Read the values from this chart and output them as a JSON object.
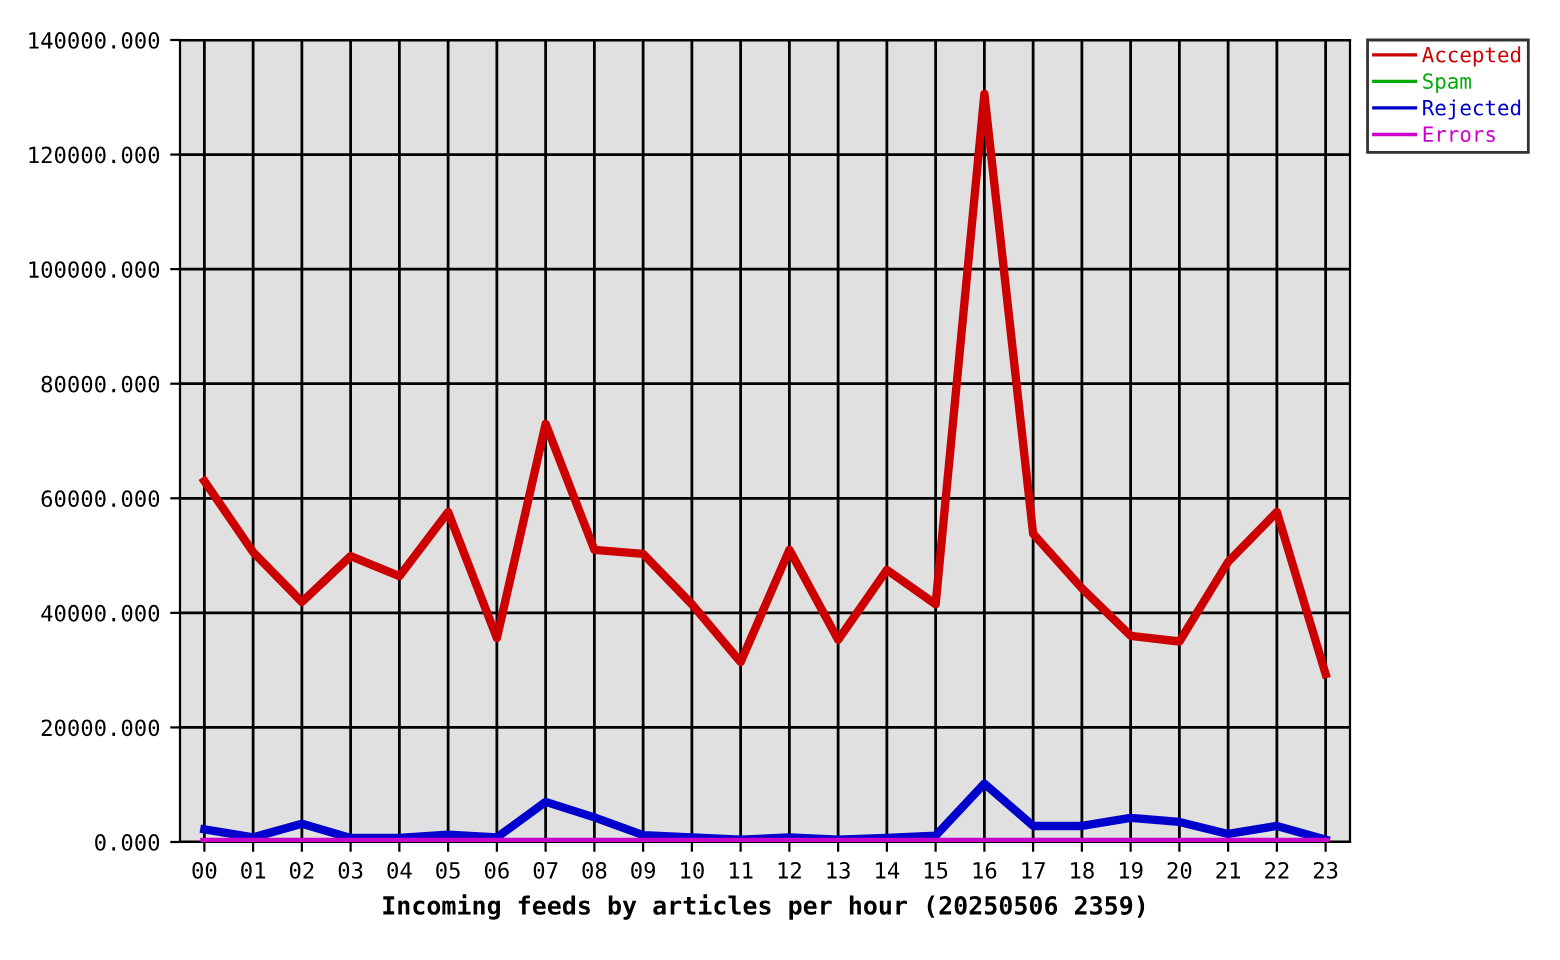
{
  "chart_data": {
    "type": "line",
    "xlabel": "Incoming feeds by articles per hour (20250506 2359)",
    "categories": [
      "00",
      "01",
      "02",
      "03",
      "04",
      "05",
      "06",
      "07",
      "08",
      "09",
      "10",
      "11",
      "12",
      "13",
      "14",
      "15",
      "16",
      "17",
      "18",
      "19",
      "20",
      "21",
      "22",
      "23"
    ],
    "series": [
      {
        "name": "Accepted",
        "color": "#cc0000",
        "values": [
          63000,
          50600,
          41900,
          49900,
          46400,
          57600,
          35600,
          73000,
          51000,
          50300,
          41500,
          31400,
          51000,
          35300,
          47500,
          41500,
          130600,
          53800,
          44300,
          36000,
          35000,
          48900,
          57600,
          29300
        ]
      },
      {
        "name": "Spam",
        "color": "#00aa00",
        "values": [
          null,
          null,
          null,
          null,
          null,
          null,
          null,
          null,
          null,
          null,
          null,
          null,
          null,
          null,
          null,
          null,
          null,
          null,
          null,
          null,
          null,
          null,
          null,
          null
        ]
      },
      {
        "name": "Rejected",
        "color": "#0000cc",
        "values": [
          2200,
          800,
          3200,
          700,
          700,
          1300,
          800,
          7000,
          4300,
          1200,
          800,
          400,
          800,
          400,
          700,
          1100,
          10200,
          2800,
          2800,
          4200,
          3500,
          1400,
          2800,
          400
        ]
      },
      {
        "name": "Errors",
        "color": "#cc00cc",
        "values": [
          0,
          0,
          0,
          0,
          0,
          0,
          0,
          0,
          0,
          0,
          0,
          0,
          0,
          0,
          0,
          0,
          0,
          0,
          0,
          0,
          0,
          0,
          0,
          0
        ]
      }
    ],
    "ylim": [
      0,
      140000
    ],
    "yticks": [
      {
        "value": 0,
        "label": "0.000"
      },
      {
        "value": 20000,
        "label": "20000.000"
      },
      {
        "value": 40000,
        "label": "40000.000"
      },
      {
        "value": 60000,
        "label": "60000.000"
      },
      {
        "value": 80000,
        "label": "80000.000"
      },
      {
        "value": 100000,
        "label": "100000.000"
      },
      {
        "value": 120000,
        "label": "120000.000"
      },
      {
        "value": 140000,
        "label": "140000.000"
      }
    ],
    "grid": true,
    "legend": "top right"
  }
}
